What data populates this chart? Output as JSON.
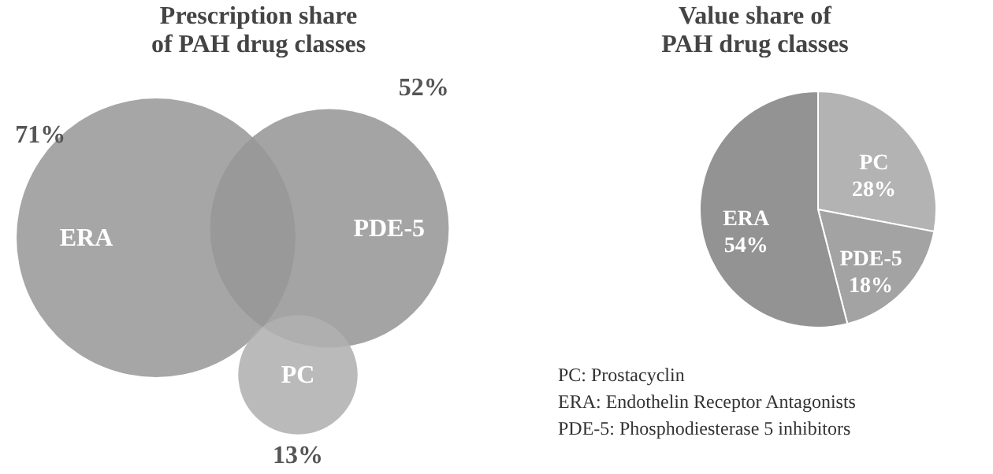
{
  "chart_data": [
    {
      "type": "other",
      "title": "Prescription share of PAH drug classes",
      "categories": [
        "ERA",
        "PDE-5",
        "PC"
      ],
      "values": [
        71,
        52,
        13
      ],
      "value_labels": [
        "71%",
        "52%",
        "13%"
      ],
      "colors": [
        "#9a9a9a",
        "#979797",
        "#b0b0b0"
      ]
    },
    {
      "type": "pie",
      "title": "Value share of PAH drug classes",
      "categories": [
        "PC",
        "PDE-5",
        "ERA"
      ],
      "values": [
        28,
        18,
        54
      ],
      "value_labels": [
        "28%",
        "18%",
        "54%"
      ],
      "colors": [
        "#b3b3b3",
        "#a3a3a3",
        "#939393"
      ],
      "annotations": [
        "PC: Prostacyclin",
        "ERA: Endothelin Receptor Antagonists",
        "PDE-5: Phosphodiesterase 5 inhibitors"
      ]
    }
  ]
}
